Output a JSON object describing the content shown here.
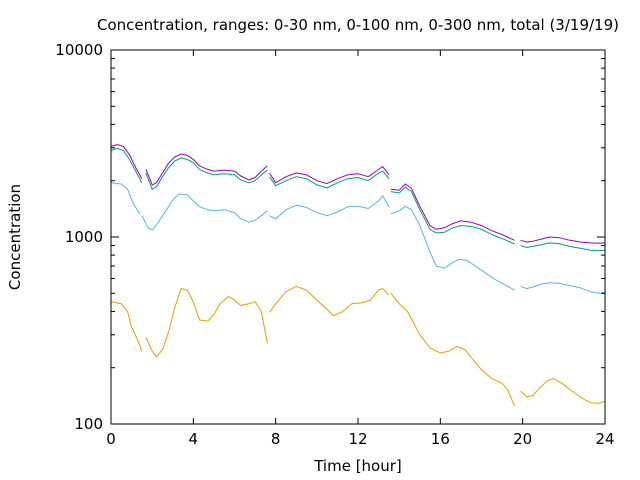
{
  "chart_data": {
    "type": "line",
    "title": "Concentration, ranges: 0-30 nm, 0-100 nm, 0-300 nm, total (3/19/19)",
    "xlabel": "Time [hour]",
    "ylabel": "Concentration",
    "xlim": [
      0,
      24
    ],
    "ylim": [
      100,
      10000
    ],
    "yscale": "log",
    "grid": false,
    "legend": "none",
    "x_ticks": [
      0,
      4,
      8,
      12,
      16,
      20,
      24
    ],
    "x_tick_labels": [
      "0",
      "4",
      "8",
      "12",
      "16",
      "20",
      "24"
    ],
    "y_ticks": [
      100,
      1000,
      10000
    ],
    "y_tick_labels": [
      "100",
      "1000",
      "10000"
    ],
    "series": [
      {
        "color": "#e69f00",
        "segments": [
          [
            [
              0,
              450
            ],
            [
              0.5,
              440
            ],
            [
              0.8,
              400
            ],
            [
              1.0,
              330
            ],
            [
              1.3,
              280
            ],
            [
              1.5,
              245
            ]
          ],
          [
            [
              1.7,
              290
            ],
            [
              2.0,
              245
            ],
            [
              2.2,
              228
            ],
            [
              2.5,
              250
            ],
            [
              2.8,
              310
            ],
            [
              3.1,
              420
            ],
            [
              3.4,
              530
            ],
            [
              3.7,
              520
            ],
            [
              4.0,
              450
            ],
            [
              4.3,
              360
            ],
            [
              4.7,
              355
            ],
            [
              5.0,
              385
            ],
            [
              5.3,
              440
            ],
            [
              5.7,
              480
            ],
            [
              6.0,
              460
            ],
            [
              6.3,
              430
            ],
            [
              6.7,
              440
            ],
            [
              7.0,
              450
            ],
            [
              7.3,
              400
            ],
            [
              7.6,
              270
            ]
          ],
          [
            [
              7.7,
              395
            ],
            [
              8.0,
              440
            ],
            [
              8.5,
              510
            ],
            [
              9.0,
              545
            ],
            [
              9.5,
              520
            ],
            [
              10.0,
              460
            ],
            [
              10.4,
              420
            ],
            [
              10.8,
              380
            ],
            [
              11.2,
              395
            ],
            [
              11.7,
              440
            ],
            [
              12.2,
              445
            ],
            [
              12.6,
              460
            ],
            [
              13.0,
              520
            ],
            [
              13.2,
              530
            ],
            [
              13.5,
              490
            ]
          ],
          [
            [
              13.6,
              500
            ],
            [
              14.0,
              440
            ],
            [
              14.4,
              400
            ],
            [
              15.0,
              300
            ],
            [
              15.5,
              255
            ],
            [
              16.0,
              240
            ],
            [
              16.4,
              245
            ],
            [
              16.8,
              260
            ],
            [
              17.2,
              250
            ],
            [
              17.6,
              220
            ],
            [
              18.0,
              195
            ],
            [
              18.5,
              175
            ],
            [
              19.0,
              165
            ],
            [
              19.3,
              150
            ],
            [
              19.6,
              125
            ]
          ],
          [
            [
              19.9,
              150
            ],
            [
              20.2,
              140
            ],
            [
              20.5,
              142
            ],
            [
              20.8,
              155
            ],
            [
              21.2,
              170
            ],
            [
              21.5,
              175
            ],
            [
              21.9,
              165
            ],
            [
              22.4,
              150
            ],
            [
              22.9,
              137
            ],
            [
              23.3,
              130
            ],
            [
              23.7,
              129
            ],
            [
              24.0,
              132
            ]
          ]
        ]
      },
      {
        "color": "#56b4e9",
        "segments": [
          [
            [
              0,
              1950
            ],
            [
              0.5,
              1920
            ],
            [
              0.8,
              1800
            ],
            [
              1.1,
              1500
            ],
            [
              1.4,
              1330
            ]
          ],
          [
            [
              1.5,
              1300
            ],
            [
              1.8,
              1120
            ],
            [
              2.0,
              1090
            ],
            [
              2.3,
              1200
            ],
            [
              2.7,
              1400
            ],
            [
              3.0,
              1580
            ],
            [
              3.3,
              1700
            ],
            [
              3.7,
              1680
            ],
            [
              4.0,
              1560
            ],
            [
              4.3,
              1450
            ],
            [
              4.7,
              1400
            ],
            [
              5.0,
              1380
            ],
            [
              5.5,
              1400
            ],
            [
              6.0,
              1350
            ],
            [
              6.3,
              1250
            ],
            [
              6.7,
              1200
            ],
            [
              7.0,
              1230
            ],
            [
              7.3,
              1300
            ],
            [
              7.6,
              1380
            ]
          ],
          [
            [
              7.7,
              1300
            ],
            [
              8.0,
              1250
            ],
            [
              8.5,
              1400
            ],
            [
              9.0,
              1480
            ],
            [
              9.5,
              1440
            ],
            [
              10.0,
              1350
            ],
            [
              10.5,
              1300
            ],
            [
              11.0,
              1360
            ],
            [
              11.5,
              1450
            ],
            [
              12.0,
              1460
            ],
            [
              12.5,
              1420
            ],
            [
              13.0,
              1560
            ],
            [
              13.2,
              1660
            ],
            [
              13.5,
              1450
            ]
          ],
          [
            [
              13.6,
              1330
            ],
            [
              14.0,
              1380
            ],
            [
              14.3,
              1460
            ],
            [
              14.6,
              1400
            ],
            [
              15.0,
              1150
            ],
            [
              15.5,
              830
            ],
            [
              15.8,
              700
            ],
            [
              16.2,
              680
            ],
            [
              16.5,
              720
            ],
            [
              16.9,
              760
            ],
            [
              17.3,
              750
            ],
            [
              17.7,
              700
            ],
            [
              18.2,
              640
            ],
            [
              18.7,
              590
            ],
            [
              19.2,
              550
            ],
            [
              19.6,
              520
            ]
          ],
          [
            [
              19.9,
              545
            ],
            [
              20.2,
              530
            ],
            [
              20.5,
              540
            ],
            [
              20.9,
              560
            ],
            [
              21.3,
              570
            ],
            [
              21.8,
              565
            ],
            [
              22.3,
              550
            ],
            [
              22.8,
              535
            ],
            [
              23.3,
              510
            ],
            [
              23.7,
              500
            ],
            [
              24.0,
              505
            ]
          ]
        ]
      },
      {
        "color": "#009e73",
        "segments": [
          [
            [
              0,
              2900
            ],
            [
              0.3,
              2980
            ],
            [
              0.6,
              2900
            ],
            [
              0.9,
              2600
            ],
            [
              1.2,
              2250
            ],
            [
              1.5,
              1950
            ]
          ],
          [
            [
              1.7,
              2200
            ],
            [
              2.0,
              1800
            ],
            [
              2.2,
              1850
            ],
            [
              2.5,
              2100
            ],
            [
              2.8,
              2350
            ],
            [
              3.1,
              2550
            ],
            [
              3.4,
              2650
            ],
            [
              3.7,
              2600
            ],
            [
              4.0,
              2500
            ],
            [
              4.3,
              2300
            ],
            [
              4.7,
              2200
            ],
            [
              5.0,
              2150
            ],
            [
              5.5,
              2180
            ],
            [
              6.0,
              2150
            ],
            [
              6.3,
              2020
            ],
            [
              6.7,
              1950
            ],
            [
              7.0,
              2000
            ],
            [
              7.3,
              2150
            ],
            [
              7.6,
              2280
            ]
          ],
          [
            [
              7.7,
              2100
            ],
            [
              8.0,
              1880
            ],
            [
              8.5,
              2000
            ],
            [
              9.0,
              2100
            ],
            [
              9.5,
              2050
            ],
            [
              10.0,
              1900
            ],
            [
              10.5,
              1830
            ],
            [
              11.0,
              1950
            ],
            [
              11.5,
              2050
            ],
            [
              12.0,
              2080
            ],
            [
              12.5,
              2000
            ],
            [
              13.0,
              2200
            ],
            [
              13.2,
              2250
            ],
            [
              13.5,
              2050
            ]
          ],
          [
            [
              13.6,
              1750
            ],
            [
              14.0,
              1720
            ],
            [
              14.3,
              1850
            ],
            [
              14.6,
              1750
            ],
            [
              15.0,
              1400
            ],
            [
              15.5,
              1100
            ],
            [
              15.8,
              1050
            ],
            [
              16.2,
              1060
            ],
            [
              16.6,
              1120
            ],
            [
              17.0,
              1150
            ],
            [
              17.5,
              1140
            ],
            [
              18.0,
              1100
            ],
            [
              18.5,
              1030
            ],
            [
              19.0,
              980
            ],
            [
              19.6,
              920
            ]
          ],
          [
            [
              19.9,
              900
            ],
            [
              20.2,
              880
            ],
            [
              20.5,
              890
            ],
            [
              20.9,
              910
            ],
            [
              21.3,
              930
            ],
            [
              21.8,
              920
            ],
            [
              22.3,
              890
            ],
            [
              22.8,
              870
            ],
            [
              23.3,
              850
            ],
            [
              23.7,
              845
            ],
            [
              24.0,
              850
            ]
          ]
        ]
      },
      {
        "color": "#9400d3",
        "segments": [
          [
            [
              0,
              3050
            ],
            [
              0.3,
              3120
            ],
            [
              0.6,
              3050
            ],
            [
              0.9,
              2750
            ],
            [
              1.2,
              2350
            ],
            [
              1.5,
              2050
            ]
          ],
          [
            [
              1.7,
              2300
            ],
            [
              2.0,
              1900
            ],
            [
              2.2,
              1950
            ],
            [
              2.5,
              2200
            ],
            [
              2.8,
              2480
            ],
            [
              3.1,
              2680
            ],
            [
              3.4,
              2780
            ],
            [
              3.7,
              2730
            ],
            [
              4.0,
              2600
            ],
            [
              4.3,
              2400
            ],
            [
              4.7,
              2300
            ],
            [
              5.0,
              2250
            ],
            [
              5.5,
              2280
            ],
            [
              6.0,
              2250
            ],
            [
              6.3,
              2120
            ],
            [
              6.7,
              2020
            ],
            [
              7.0,
              2080
            ],
            [
              7.3,
              2250
            ],
            [
              7.6,
              2400
            ]
          ],
          [
            [
              7.7,
              2200
            ],
            [
              8.0,
              1950
            ],
            [
              8.5,
              2100
            ],
            [
              9.0,
              2200
            ],
            [
              9.5,
              2150
            ],
            [
              10.0,
              2000
            ],
            [
              10.5,
              1930
            ],
            [
              11.0,
              2050
            ],
            [
              11.5,
              2150
            ],
            [
              12.0,
              2180
            ],
            [
              12.5,
              2100
            ],
            [
              13.0,
              2300
            ],
            [
              13.2,
              2380
            ],
            [
              13.5,
              2150
            ]
          ],
          [
            [
              13.6,
              1800
            ],
            [
              14.0,
              1780
            ],
            [
              14.3,
              1920
            ],
            [
              14.6,
              1820
            ],
            [
              15.0,
              1460
            ],
            [
              15.5,
              1150
            ],
            [
              15.8,
              1100
            ],
            [
              16.2,
              1120
            ],
            [
              16.6,
              1180
            ],
            [
              17.0,
              1220
            ],
            [
              17.5,
              1200
            ],
            [
              18.0,
              1150
            ],
            [
              18.5,
              1080
            ],
            [
              19.0,
              1030
            ],
            [
              19.6,
              960
            ]
          ],
          [
            [
              19.9,
              960
            ],
            [
              20.2,
              940
            ],
            [
              20.5,
              950
            ],
            [
              20.9,
              975
            ],
            [
              21.3,
              1000
            ],
            [
              21.8,
              990
            ],
            [
              22.3,
              960
            ],
            [
              22.8,
              940
            ],
            [
              23.3,
              930
            ],
            [
              23.7,
              925
            ],
            [
              24.0,
              930
            ]
          ]
        ]
      }
    ]
  }
}
